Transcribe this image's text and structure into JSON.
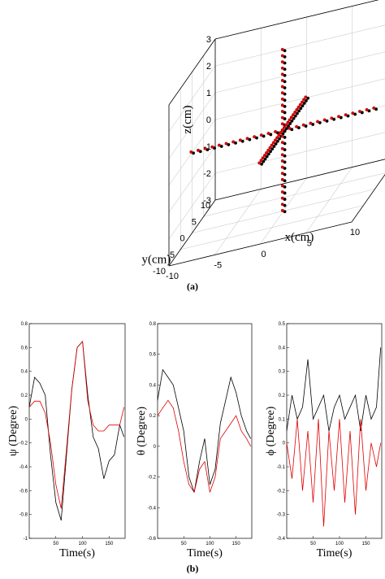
{
  "panel_a": {
    "caption": "(a)",
    "chart_data": {
      "type": "scatter",
      "title": "",
      "xlabel": "x(cm)",
      "ylabel": "y(cm)",
      "zlabel": "z(cm)",
      "xlim": [
        -10,
        10
      ],
      "ylim": [
        -10,
        10
      ],
      "zlim": [
        -3,
        3
      ],
      "x_ticks": [
        "-10",
        "-5",
        "0",
        "5",
        "10"
      ],
      "y_ticks": [
        "-10",
        "-5",
        "0",
        "5",
        "10"
      ],
      "z_ticks": [
        "-3",
        "-2",
        "-1",
        "0",
        "1",
        "2",
        "3"
      ],
      "grid": true,
      "series": [
        {
          "color": "#000000",
          "segments": [
            {
              "from": [
                -10,
                0,
                0
              ],
              "to": [
                10,
                0,
                0
              ]
            },
            {
              "from": [
                0,
                -10,
                0
              ],
              "to": [
                0,
                10,
                0
              ]
            },
            {
              "from": [
                0,
                0,
                -3
              ],
              "to": [
                0,
                0,
                3
              ]
            }
          ]
        },
        {
          "color": "#e00000",
          "segments": [
            {
              "from": [
                -10,
                0,
                0
              ],
              "to": [
                10,
                0,
                0
              ]
            },
            {
              "from": [
                0,
                -10,
                0
              ],
              "to": [
                0,
                10,
                0
              ]
            },
            {
              "from": [
                0,
                0,
                -3
              ],
              "to": [
                0,
                0,
                3
              ]
            }
          ]
        }
      ]
    }
  },
  "panel_b": {
    "caption": "(b)",
    "chart_data": [
      {
        "type": "line",
        "xlabel": "Time(s)",
        "ylabel": "ψ (Degree)",
        "xlim": [
          0,
          180
        ],
        "ylim": [
          -1,
          0.8
        ],
        "x_ticks": [
          "50",
          "100",
          "150"
        ],
        "y_ticks": [
          "-1",
          "-0.8",
          "-0.6",
          "-0.4",
          "-0.2",
          "0",
          "0.2",
          "0.4",
          "0.6",
          "0.8"
        ],
        "series": [
          {
            "color": "#000000",
            "x": [
              0,
              10,
              20,
              30,
              40,
              50,
              60,
              70,
              80,
              90,
              100,
              110,
              120,
              130,
              140,
              150,
              160,
              170,
              178
            ],
            "y": [
              0.1,
              0.35,
              0.3,
              0.2,
              -0.3,
              -0.7,
              -0.85,
              -0.3,
              0.25,
              0.6,
              0.65,
              0.2,
              -0.15,
              -0.25,
              -0.5,
              -0.35,
              -0.3,
              -0.05,
              -0.15
            ]
          },
          {
            "color": "#e00000",
            "x": [
              0,
              10,
              20,
              30,
              40,
              50,
              60,
              70,
              80,
              90,
              100,
              110,
              120,
              130,
              140,
              150,
              160,
              170,
              178
            ],
            "y": [
              0.1,
              0.15,
              0.15,
              0.05,
              -0.2,
              -0.55,
              -0.75,
              -0.25,
              0.25,
              0.6,
              0.65,
              0.15,
              -0.05,
              -0.1,
              -0.1,
              -0.05,
              -0.05,
              -0.05,
              0.1
            ]
          }
        ]
      },
      {
        "type": "line",
        "xlabel": "Time(s)",
        "ylabel": "θ (Degree)",
        "xlim": [
          0,
          180
        ],
        "ylim": [
          -0.6,
          0.8
        ],
        "x_ticks": [
          "50",
          "100",
          "150"
        ],
        "y_ticks": [
          "-0.6",
          "-0.4",
          "-0.2",
          "0",
          "0.2",
          "0.4",
          "0.6",
          "0.8"
        ],
        "series": [
          {
            "color": "#000000",
            "x": [
              0,
              10,
              20,
              30,
              40,
              50,
              60,
              70,
              80,
              90,
              100,
              110,
              120,
              130,
              140,
              150,
              160,
              170,
              178
            ],
            "y": [
              0.3,
              0.5,
              0.45,
              0.4,
              0.25,
              0.1,
              -0.2,
              -0.3,
              -0.1,
              0.05,
              -0.25,
              -0.15,
              0.15,
              0.3,
              0.45,
              0.35,
              0.2,
              0.1,
              0.05
            ]
          },
          {
            "color": "#e00000",
            "x": [
              0,
              10,
              20,
              30,
              40,
              50,
              60,
              70,
              80,
              90,
              100,
              110,
              120,
              130,
              140,
              150,
              160,
              170,
              178
            ],
            "y": [
              0.2,
              0.25,
              0.3,
              0.25,
              0.1,
              -0.1,
              -0.25,
              -0.3,
              -0.15,
              -0.1,
              -0.3,
              -0.2,
              0.05,
              0.1,
              0.15,
              0.2,
              0.1,
              0.05,
              0.0
            ]
          }
        ]
      },
      {
        "type": "line",
        "xlabel": "Time(s)",
        "ylabel": "ϕ (Degree)",
        "xlim": [
          0,
          180
        ],
        "ylim": [
          -0.4,
          0.5
        ],
        "x_ticks": [
          "50",
          "100",
          "150"
        ],
        "y_ticks": [
          "-0.4",
          "-0.3",
          "-0.2",
          "-0.1",
          "0",
          "0.1",
          "0.2",
          "0.3",
          "0.4",
          "0.5"
        ],
        "series": [
          {
            "color": "#000000",
            "x": [
              0,
              10,
              20,
              30,
              40,
              50,
              60,
              70,
              80,
              90,
              100,
              110,
              120,
              130,
              140,
              150,
              160,
              170,
              178
            ],
            "y": [
              0.05,
              0.2,
              0.1,
              0.15,
              0.35,
              0.1,
              0.15,
              0.2,
              0.05,
              0.15,
              0.2,
              0.1,
              0.15,
              0.2,
              0.05,
              0.2,
              0.1,
              0.15,
              0.4
            ]
          },
          {
            "color": "#e00000",
            "x": [
              0,
              10,
              20,
              30,
              40,
              50,
              60,
              70,
              80,
              90,
              100,
              110,
              120,
              130,
              140,
              150,
              160,
              170,
              178
            ],
            "y": [
              0.0,
              -0.15,
              0.1,
              -0.2,
              0.05,
              -0.25,
              0.1,
              -0.35,
              0.05,
              -0.2,
              0.1,
              -0.25,
              0.05,
              -0.3,
              0.1,
              -0.2,
              0.0,
              -0.1,
              0.0
            ]
          }
        ]
      }
    ]
  }
}
